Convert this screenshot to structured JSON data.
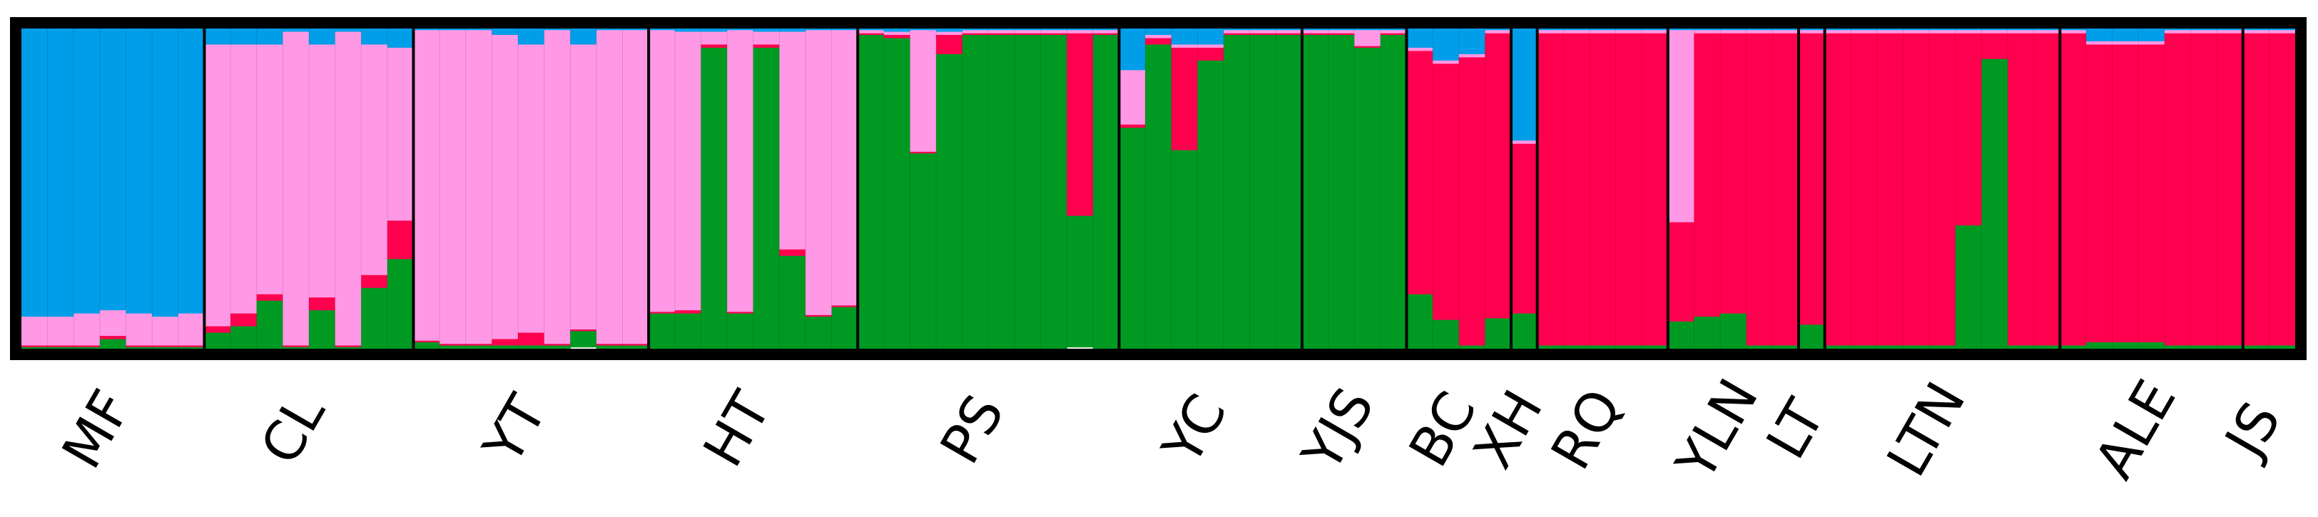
{
  "colors": {
    "cluster1": "#009ee8",
    "cluster2": "#ff99e5",
    "cluster3": "#ff004f",
    "cluster4": "#009a23",
    "frame": "#000000"
  },
  "chart_data": {
    "type": "stacked-bar",
    "ylim": [
      0,
      1
    ],
    "grid": false,
    "legend": "none",
    "populations": [
      {
        "label": "MF",
        "n": 7
      },
      {
        "label": "CL",
        "n": 8
      },
      {
        "label": "YT",
        "n": 9
      },
      {
        "label": "HT",
        "n": 8
      },
      {
        "label": "PS",
        "n": 10
      },
      {
        "label": "YC",
        "n": 7
      },
      {
        "label": "YJS",
        "n": 4
      },
      {
        "label": "BC",
        "n": 4
      },
      {
        "label": "XH",
        "n": 1
      },
      {
        "label": "RQ",
        "n": 5
      },
      {
        "label": "YLN",
        "n": 5
      },
      {
        "label": "LT",
        "n": 1
      },
      {
        "label": "LTN",
        "n": 9
      },
      {
        "label": "ALE",
        "n": 7
      },
      {
        "label": "JS",
        "n": 2
      }
    ],
    "series_colors": [
      "#009ee8",
      "#ff99e5",
      "#ff004f",
      "#009a23"
    ],
    "individuals": [
      [
        0.9,
        0.09,
        0.005,
        0.005
      ],
      [
        0.9,
        0.09,
        0.005,
        0.005
      ],
      [
        0.89,
        0.1,
        0.005,
        0.005
      ],
      [
        0.88,
        0.08,
        0.01,
        0.03
      ],
      [
        0.89,
        0.1,
        0.005,
        0.005
      ],
      [
        0.9,
        0.09,
        0.005,
        0.005
      ],
      [
        0.89,
        0.1,
        0.005,
        0.005
      ],
      [
        0.05,
        0.88,
        0.02,
        0.05
      ],
      [
        0.05,
        0.84,
        0.04,
        0.07
      ],
      [
        0.05,
        0.78,
        0.02,
        0.15
      ],
      [
        0.01,
        0.98,
        0.005,
        0.005
      ],
      [
        0.05,
        0.79,
        0.04,
        0.12
      ],
      [
        0.01,
        0.98,
        0.005,
        0.005
      ],
      [
        0.05,
        0.72,
        0.04,
        0.19
      ],
      [
        0.06,
        0.54,
        0.12,
        0.28
      ],
      [
        0.005,
        0.97,
        0.005,
        0.02
      ],
      [
        0.005,
        0.98,
        0.005,
        0.01
      ],
      [
        0.005,
        0.98,
        0.005,
        0.01
      ],
      [
        0.02,
        0.95,
        0.02,
        0.01
      ],
      [
        0.05,
        0.9,
        0.04,
        0.01
      ],
      [
        0.005,
        0.98,
        0.005,
        0.01
      ],
      [
        0.05,
        0.89,
        0.005,
        0.05
      ],
      [
        0.005,
        0.98,
        0.005,
        0.01
      ],
      [
        0.005,
        0.98,
        0.005,
        0.01
      ],
      [
        0.005,
        0.88,
        0.005,
        0.11
      ],
      [
        0.01,
        0.87,
        0.01,
        0.11
      ],
      [
        0.01,
        0.04,
        0.01,
        0.94
      ],
      [
        0.005,
        0.88,
        0.005,
        0.11
      ],
      [
        0.01,
        0.04,
        0.01,
        0.94
      ],
      [
        0.01,
        0.68,
        0.02,
        0.29
      ],
      [
        0.005,
        0.89,
        0.005,
        0.1
      ],
      [
        0.005,
        0.86,
        0.005,
        0.13
      ],
      [
        0.005,
        0.01,
        0.005,
        0.98
      ],
      [
        0.01,
        0.01,
        0.01,
        0.97
      ],
      [
        0.005,
        0.38,
        0.005,
        0.61
      ],
      [
        0.01,
        0.01,
        0.06,
        0.92
      ],
      [
        0.005,
        0.01,
        0.005,
        0.98
      ],
      [
        0.005,
        0.01,
        0.005,
        0.98
      ],
      [
        0.005,
        0.01,
        0.005,
        0.98
      ],
      [
        0.005,
        0.01,
        0.005,
        0.98
      ],
      [
        0.005,
        0.01,
        0.57,
        0.41
      ],
      [
        0.005,
        0.01,
        0.005,
        0.98
      ],
      [
        0.13,
        0.17,
        0.01,
        0.69
      ],
      [
        0.02,
        0.01,
        0.02,
        0.95
      ],
      [
        0.05,
        0.01,
        0.32,
        0.62
      ],
      [
        0.05,
        0.01,
        0.04,
        0.9
      ],
      [
        0.005,
        0.01,
        0.005,
        0.98
      ],
      [
        0.005,
        0.01,
        0.005,
        0.98
      ],
      [
        0.005,
        0.01,
        0.005,
        0.98
      ],
      [
        0.005,
        0.01,
        0.005,
        0.98
      ],
      [
        0.005,
        0.01,
        0.005,
        0.98
      ],
      [
        0.005,
        0.05,
        0.005,
        0.94
      ],
      [
        0.005,
        0.01,
        0.005,
        0.98
      ],
      [
        0.06,
        0.01,
        0.76,
        0.17
      ],
      [
        0.1,
        0.01,
        0.8,
        0.09
      ],
      [
        0.08,
        0.01,
        0.9,
        0.01
      ],
      [
        0.005,
        0.01,
        0.89,
        0.095
      ],
      [
        0.35,
        0.01,
        0.53,
        0.11
      ],
      [
        0.005,
        0.01,
        0.975,
        0.01
      ],
      [
        0.005,
        0.01,
        0.975,
        0.01
      ],
      [
        0.005,
        0.01,
        0.975,
        0.01
      ],
      [
        0.005,
        0.01,
        0.975,
        0.01
      ],
      [
        0.005,
        0.01,
        0.975,
        0.01
      ],
      [
        0.005,
        0.6,
        0.31,
        0.085
      ],
      [
        0.005,
        0.01,
        0.885,
        0.1
      ],
      [
        0.005,
        0.01,
        0.875,
        0.11
      ],
      [
        0.005,
        0.01,
        0.975,
        0.01
      ],
      [
        0.005,
        0.01,
        0.975,
        0.01
      ],
      [
        0.005,
        0.01,
        0.91,
        0.075
      ],
      [
        0.005,
        0.01,
        0.975,
        0.01
      ],
      [
        0.005,
        0.01,
        0.975,
        0.01
      ],
      [
        0.005,
        0.01,
        0.975,
        0.01
      ],
      [
        0.005,
        0.01,
        0.975,
        0.01
      ],
      [
        0.005,
        0.01,
        0.975,
        0.01
      ],
      [
        0.005,
        0.01,
        0.6,
        0.385
      ],
      [
        0.005,
        0.01,
        0.08,
        0.905
      ],
      [
        0.005,
        0.01,
        0.975,
        0.01
      ],
      [
        0.005,
        0.01,
        0.975,
        0.01
      ],
      [
        0.005,
        0.01,
        0.975,
        0.01
      ],
      [
        0.04,
        0.01,
        0.93,
        0.02
      ],
      [
        0.04,
        0.01,
        0.93,
        0.02
      ],
      [
        0.04,
        0.01,
        0.93,
        0.02
      ],
      [
        0.005,
        0.01,
        0.975,
        0.01
      ],
      [
        0.005,
        0.01,
        0.975,
        0.01
      ],
      [
        0.005,
        0.01,
        0.975,
        0.01
      ],
      [
        0.005,
        0.01,
        0.975,
        0.01
      ],
      [
        0.005,
        0.01,
        0.975,
        0.01
      ]
    ]
  }
}
